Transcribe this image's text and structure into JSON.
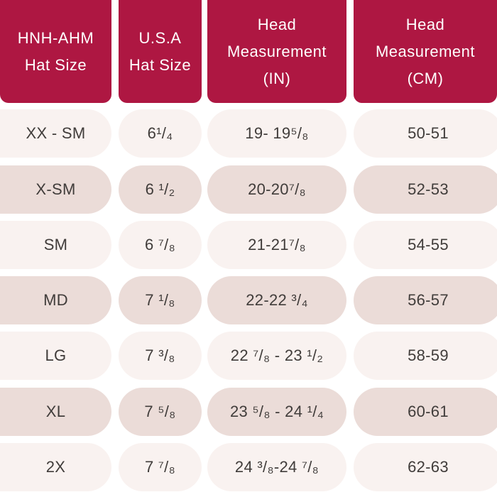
{
  "headers": [
    [
      "HNH-AHM",
      "Hat Size"
    ],
    [
      "U.S.A",
      "Hat Size"
    ],
    [
      "Head",
      "Measurement",
      "(IN)"
    ],
    [
      "Head",
      "Measurement",
      "(CM)"
    ]
  ],
  "rows": [
    {
      "label": "XX - SM",
      "usa": "6¹/₄",
      "inches": "19- 19⁵/₈",
      "cm": "50-51"
    },
    {
      "label": "X-SM",
      "usa": "6 ¹/₂",
      "inches": "20-20⁷/₈",
      "cm": "52-53"
    },
    {
      "label": "SM",
      "usa": "6 ⁷/₈",
      "inches": "21-21⁷/₈",
      "cm": "54-55"
    },
    {
      "label": "MD",
      "usa": "7 ¹/₈",
      "inches": "22-22 ³/₄",
      "cm": "56-57"
    },
    {
      "label": "LG",
      "usa": "7 ³/₈",
      "inches": "22 ⁷/₈ - 23 ¹/₂",
      "cm": "58-59"
    },
    {
      "label": "XL",
      "usa": "7 ⁵/₈",
      "inches": "23 ⁵/₈ - 24 ¹/₄",
      "cm": "60-61"
    },
    {
      "label": "2X",
      "usa": "7 ⁷/₈",
      "inches": "24 ³/₈-24 ⁷/₈",
      "cm": "62-63"
    }
  ],
  "colors": {
    "header_bg": "#ae1742",
    "header_text": "#ffffff",
    "row_light": "#f9f2f0",
    "row_dark": "#ebdcd8",
    "cell_text": "#403c3a"
  }
}
